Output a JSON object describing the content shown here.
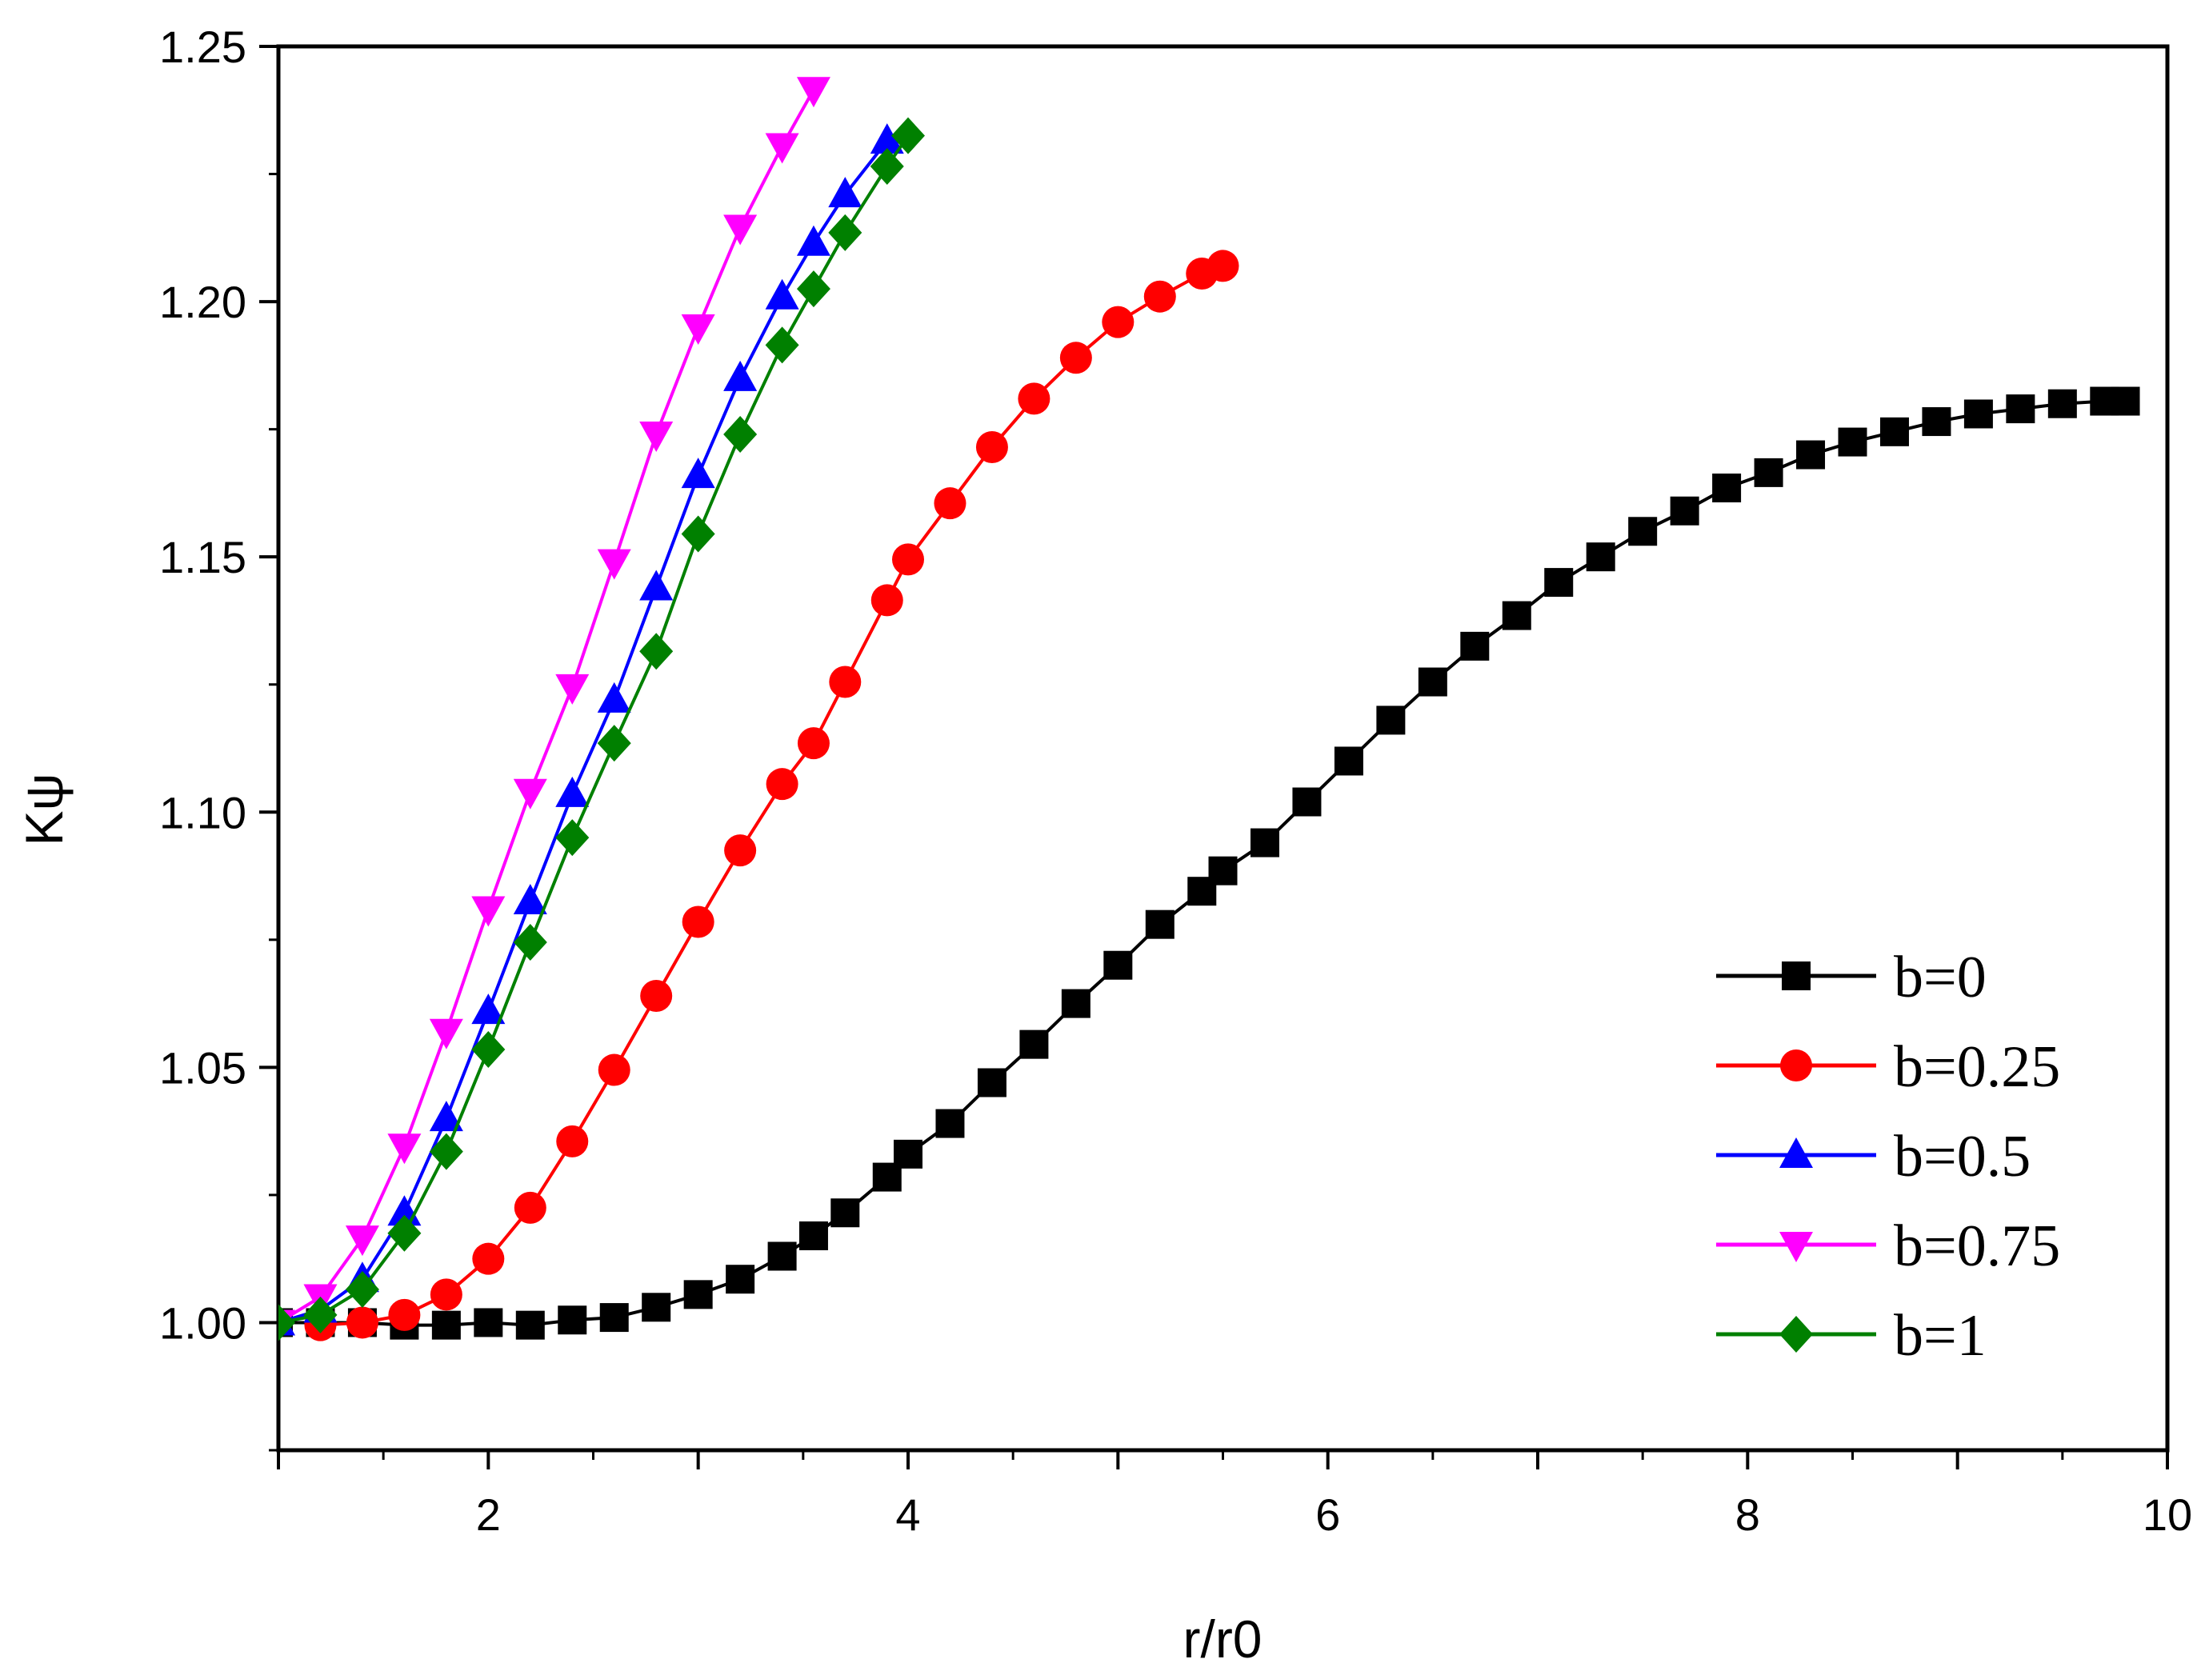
{
  "chart_data": {
    "type": "line",
    "title": "",
    "xlabel": "r/r0",
    "ylabel": "Kψ",
    "xlim": [
      1,
      10
    ],
    "ylim": [
      0.975,
      1.25
    ],
    "xticks": [
      2,
      4,
      6,
      8,
      10
    ],
    "yticks": [
      1.0,
      1.05,
      1.1,
      1.15,
      1.2,
      1.25
    ],
    "ytick_labels": [
      "1.00",
      "1.05",
      "1.10",
      "1.15",
      "1.20",
      "1.25"
    ],
    "legend_position": "bottom-right",
    "series": [
      {
        "name": "b=0",
        "color": "#000000",
        "marker": "square",
        "x": [
          1.0,
          1.2,
          1.4,
          1.6,
          1.8,
          2.0,
          2.2,
          2.4,
          2.6,
          2.8,
          3.0,
          3.2,
          3.4,
          3.55,
          3.7,
          3.9,
          4.0,
          4.2,
          4.4,
          4.6,
          4.8,
          5.0,
          5.2,
          5.4,
          5.5,
          5.7,
          5.9,
          6.1,
          6.3,
          6.5,
          6.7,
          6.9,
          7.1,
          7.3,
          7.5,
          7.7,
          7.9,
          8.1,
          8.3,
          8.5,
          8.7,
          8.9,
          9.1,
          9.3,
          9.5,
          9.7,
          9.8
        ],
        "y": [
          1.0,
          1.0,
          1.0,
          0.9995,
          0.9995,
          1.0,
          0.9995,
          1.0005,
          1.001,
          1.003,
          1.0055,
          1.0085,
          1.013,
          1.017,
          1.0215,
          1.0285,
          1.033,
          1.039,
          1.047,
          1.0545,
          1.0625,
          1.07,
          1.078,
          1.0845,
          1.0885,
          1.094,
          1.102,
          1.11,
          1.118,
          1.1255,
          1.1325,
          1.1385,
          1.145,
          1.15,
          1.155,
          1.159,
          1.1635,
          1.1665,
          1.17,
          1.1725,
          1.1745,
          1.1765,
          1.178,
          1.179,
          1.18,
          1.1805,
          1.1805
        ]
      },
      {
        "name": "b=0.25",
        "color": "#ff0000",
        "marker": "circle",
        "x": [
          1.2,
          1.4,
          1.6,
          1.8,
          2.0,
          2.2,
          2.4,
          2.6,
          2.8,
          3.0,
          3.2,
          3.4,
          3.55,
          3.7,
          3.9,
          4.0,
          4.2,
          4.4,
          4.6,
          4.8,
          5.0,
          5.2,
          5.4,
          5.5
        ],
        "y": [
          0.9995,
          1.0,
          1.0015,
          1.0055,
          1.0125,
          1.0225,
          1.0355,
          1.0495,
          1.064,
          1.0785,
          1.0925,
          1.1055,
          1.1135,
          1.1255,
          1.1415,
          1.1495,
          1.1605,
          1.1715,
          1.181,
          1.189,
          1.196,
          1.201,
          1.2055,
          1.207
        ]
      },
      {
        "name": "b=0.5",
        "color": "#0000ff",
        "marker": "triangle-up",
        "x": [
          1.0,
          1.2,
          1.4,
          1.6,
          1.8,
          2.0,
          2.2,
          2.4,
          2.6,
          2.8,
          3.0,
          3.2,
          3.4,
          3.55,
          3.7,
          3.9
        ],
        "y": [
          1.0,
          1.0025,
          1.0085,
          1.0215,
          1.04,
          1.061,
          1.0825,
          1.1035,
          1.122,
          1.144,
          1.166,
          1.185,
          1.201,
          1.2115,
          1.221,
          1.2315
        ]
      },
      {
        "name": "b=0.75",
        "color": "#ff00ff",
        "marker": "triangle-down",
        "x": [
          1.0,
          1.2,
          1.4,
          1.6,
          1.8,
          2.0,
          2.2,
          2.4,
          2.6,
          2.8,
          3.0,
          3.2,
          3.4,
          3.55
        ],
        "y": [
          1.0,
          1.005,
          1.0165,
          1.0345,
          1.057,
          1.081,
          1.104,
          1.1245,
          1.149,
          1.174,
          1.195,
          1.2145,
          1.2305,
          1.2415
        ]
      },
      {
        "name": "b=1",
        "color": "#008000",
        "marker": "diamond",
        "x": [
          1.0,
          1.2,
          1.4,
          1.6,
          1.8,
          2.0,
          2.2,
          2.4,
          2.6,
          2.8,
          3.0,
          3.2,
          3.4,
          3.55,
          3.7,
          3.9,
          4.0
        ],
        "y": [
          1.0,
          1.0015,
          1.0065,
          1.0175,
          1.0335,
          1.0535,
          1.0745,
          1.095,
          1.1135,
          1.1315,
          1.1545,
          1.174,
          1.1915,
          1.2025,
          1.2135,
          1.2265,
          1.2325
        ]
      }
    ]
  }
}
